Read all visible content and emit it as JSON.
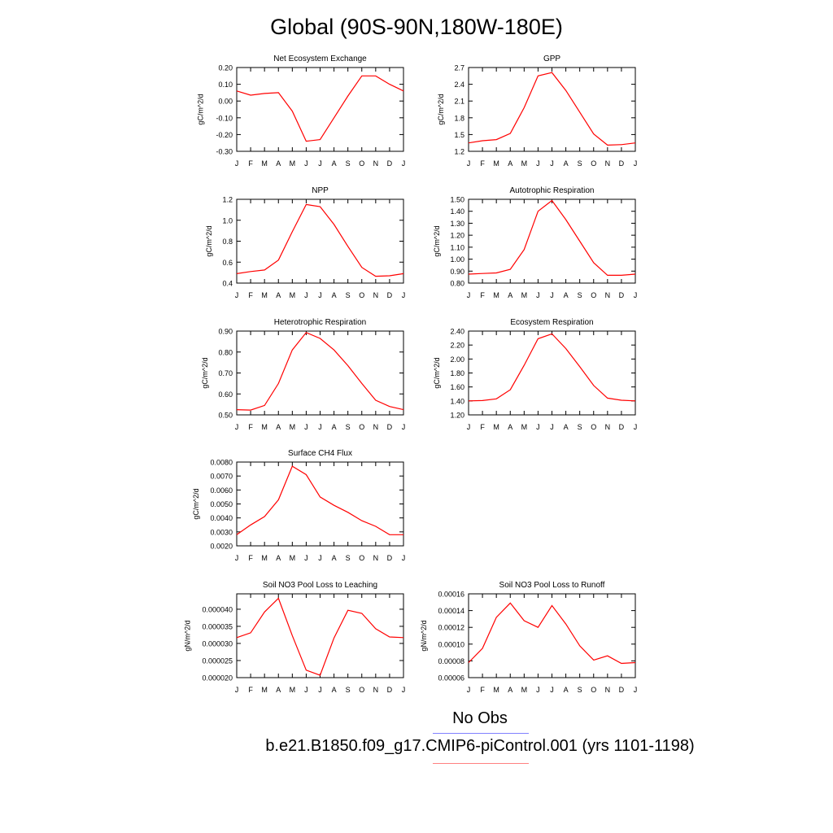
{
  "page": {
    "title": "Global (90S-90N,180W-180E)",
    "legend": [
      {
        "label": "No Obs",
        "color": "#8080ff"
      },
      {
        "label": "b.e21.B1850.f09_g17.CMIP6-piControl.001 (yrs 1101-1198)",
        "color": "#ff8080"
      }
    ]
  },
  "chart_data": [
    {
      "type": "line",
      "title": "Net Ecosystem Exchange",
      "ylabel": "gC/m^2/d",
      "xlabel": "",
      "categories": [
        "J",
        "F",
        "M",
        "A",
        "M",
        "J",
        "J",
        "A",
        "S",
        "O",
        "N",
        "D",
        "J"
      ],
      "ylim": [
        -0.3,
        0.2
      ],
      "yticks": [
        "0.20",
        "0.10",
        "0.00",
        "-0.10",
        "-0.20",
        "-0.30"
      ],
      "series": [
        {
          "color": "#ff0000",
          "values": [
            0.06,
            0.035,
            0.045,
            0.05,
            -0.06,
            -0.24,
            -0.23,
            -0.1,
            0.03,
            0.15,
            0.15,
            0.1,
            0.06
          ]
        }
      ]
    },
    {
      "type": "line",
      "title": "GPP",
      "ylabel": "gC/m^2/d",
      "xlabel": "",
      "categories": [
        "J",
        "F",
        "M",
        "A",
        "M",
        "J",
        "J",
        "A",
        "S",
        "O",
        "N",
        "D",
        "J"
      ],
      "ylim": [
        1.2,
        2.7
      ],
      "yticks": [
        "2.7",
        "2.4",
        "2.1",
        "1.8",
        "1.5",
        "1.2"
      ],
      "series": [
        {
          "color": "#ff0000",
          "values": [
            1.35,
            1.39,
            1.41,
            1.52,
            1.98,
            2.55,
            2.61,
            2.29,
            1.9,
            1.51,
            1.31,
            1.32,
            1.35
          ]
        }
      ]
    },
    {
      "type": "line",
      "title": "NPP",
      "ylabel": "gC/m^2/d",
      "xlabel": "",
      "categories": [
        "J",
        "F",
        "M",
        "A",
        "M",
        "J",
        "J",
        "A",
        "S",
        "O",
        "N",
        "D",
        "J"
      ],
      "ylim": [
        0.4,
        1.2
      ],
      "yticks": [
        "1.2",
        "1.0",
        "0.8",
        "0.6",
        "0.4"
      ],
      "series": [
        {
          "color": "#ff0000",
          "values": [
            0.49,
            0.51,
            0.525,
            0.62,
            0.89,
            1.15,
            1.13,
            0.96,
            0.75,
            0.55,
            0.465,
            0.47,
            0.49
          ]
        }
      ]
    },
    {
      "type": "line",
      "title": "Autotrophic Respiration",
      "ylabel": "gC/m^2/d",
      "xlabel": "",
      "categories": [
        "J",
        "F",
        "M",
        "A",
        "M",
        "J",
        "J",
        "A",
        "S",
        "O",
        "N",
        "D",
        "J"
      ],
      "ylim": [
        0.8,
        1.5
      ],
      "yticks": [
        "1.50",
        "1.40",
        "1.30",
        "1.20",
        "1.10",
        "1.00",
        "0.90",
        "0.80"
      ],
      "series": [
        {
          "color": "#ff0000",
          "values": [
            0.875,
            0.88,
            0.885,
            0.915,
            1.08,
            1.4,
            1.49,
            1.33,
            1.15,
            0.97,
            0.865,
            0.865,
            0.875
          ]
        }
      ]
    },
    {
      "type": "line",
      "title": "Heterotrophic Respiration",
      "ylabel": "gC/m^2/d",
      "xlabel": "",
      "categories": [
        "J",
        "F",
        "M",
        "A",
        "M",
        "J",
        "J",
        "A",
        "S",
        "O",
        "N",
        "D",
        "J"
      ],
      "ylim": [
        0.5,
        0.9
      ],
      "yticks": [
        "0.90",
        "0.80",
        "0.70",
        "0.60",
        "0.50"
      ],
      "series": [
        {
          "color": "#ff0000",
          "values": [
            0.525,
            0.523,
            0.545,
            0.65,
            0.81,
            0.893,
            0.865,
            0.81,
            0.735,
            0.65,
            0.57,
            0.54,
            0.525
          ]
        }
      ]
    },
    {
      "type": "line",
      "title": "Ecosystem Respiration",
      "ylabel": "gC/m^2/d",
      "xlabel": "",
      "categories": [
        "J",
        "F",
        "M",
        "A",
        "M",
        "J",
        "J",
        "A",
        "S",
        "O",
        "N",
        "D",
        "J"
      ],
      "ylim": [
        1.2,
        2.4
      ],
      "yticks": [
        "2.40",
        "2.20",
        "2.00",
        "1.80",
        "1.60",
        "1.40",
        "1.20"
      ],
      "series": [
        {
          "color": "#ff0000",
          "values": [
            1.4,
            1.405,
            1.43,
            1.56,
            1.91,
            2.29,
            2.36,
            2.15,
            1.89,
            1.62,
            1.44,
            1.41,
            1.4
          ]
        }
      ]
    },
    {
      "type": "line",
      "title": "Surface CH4 Flux",
      "ylabel": "gC/m^2/d",
      "xlabel": "",
      "categories": [
        "J",
        "F",
        "M",
        "A",
        "M",
        "J",
        "J",
        "A",
        "S",
        "O",
        "N",
        "D",
        "J"
      ],
      "ylim": [
        0.002,
        0.008
      ],
      "yticks": [
        "0.0080",
        "0.0070",
        "0.0060",
        "0.0050",
        "0.0040",
        "0.0030",
        "0.0020"
      ],
      "series": [
        {
          "color": "#ff0000",
          "values": [
            0.0028,
            0.0035,
            0.0041,
            0.0053,
            0.0077,
            0.0071,
            0.0055,
            0.0049,
            0.0044,
            0.0038,
            0.0034,
            0.0028,
            0.0028
          ]
        }
      ]
    },
    {
      "type": "line",
      "title": "Soil NO3 Pool Loss to Leaching",
      "ylabel": "gN/m^2/d",
      "xlabel": "",
      "categories": [
        "J",
        "F",
        "M",
        "A",
        "M",
        "J",
        "J",
        "A",
        "S",
        "O",
        "N",
        "D",
        "J"
      ],
      "ylim": [
        2e-05,
        4.45e-05
      ],
      "yticks": [
        "0.000040",
        "0.000035",
        "0.000030",
        "0.000025",
        "0.000020"
      ],
      "series": [
        {
          "color": "#ff0000",
          "values": [
            3.17e-05,
            3.31e-05,
            3.92e-05,
            4.32e-05,
            3.23e-05,
            2.22e-05,
            2.07e-05,
            3.16e-05,
            3.97e-05,
            3.88e-05,
            3.43e-05,
            3.19e-05,
            3.17e-05
          ]
        }
      ]
    },
    {
      "type": "line",
      "title": "Soil NO3 Pool Loss to Runoff",
      "ylabel": "gN/m^2/d",
      "xlabel": "",
      "categories": [
        "J",
        "F",
        "M",
        "A",
        "M",
        "J",
        "J",
        "A",
        "S",
        "O",
        "N",
        "D",
        "J"
      ],
      "ylim": [
        6e-05,
        0.00016
      ],
      "yticks": [
        "0.00016",
        "0.00014",
        "0.00012",
        "0.00010",
        "0.00008",
        "0.00006"
      ],
      "series": [
        {
          "color": "#ff0000",
          "values": [
            7.8e-05,
            9.5e-05,
            0.000132,
            0.000149,
            0.000128,
            0.00012,
            0.000146,
            0.000124,
            9.8e-05,
            8.1e-05,
            8.6e-05,
            7.7e-05,
            7.8e-05
          ]
        }
      ]
    }
  ]
}
